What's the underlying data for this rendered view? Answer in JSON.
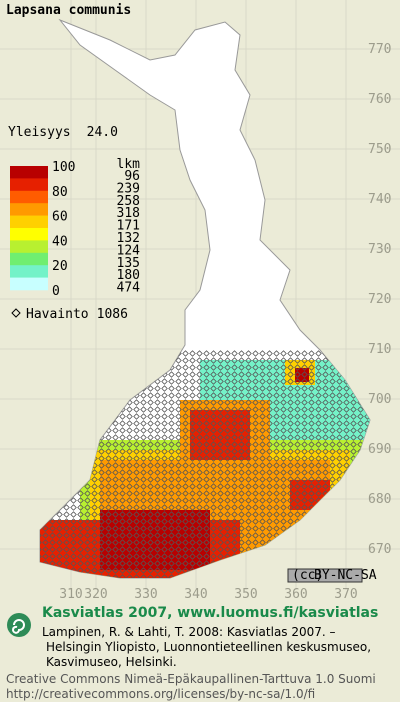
{
  "title": "Lapsana communis",
  "frequency": {
    "label": "Yleisyys",
    "value": "24.0"
  },
  "legend": {
    "scale_labels": [
      100,
      80,
      60,
      40,
      20,
      0
    ],
    "count_header": "lkm",
    "counts": [
      96,
      239,
      258,
      318,
      171,
      132,
      124,
      135,
      180,
      474
    ],
    "colors": [
      "#b80000",
      "#e62000",
      "#ff5c00",
      "#ff9a00",
      "#ffd000",
      "#ffff00",
      "#b8f030",
      "#70ee70",
      "#74f2c8",
      "#c8ffff"
    ]
  },
  "observations": {
    "label": "Havainto",
    "count": 1086
  },
  "grid": {
    "y_labels": [
      770,
      760,
      750,
      740,
      730,
      720,
      710,
      700,
      690,
      680,
      670
    ],
    "x_labels": [
      310,
      320,
      330,
      340,
      350,
      360,
      370
    ]
  },
  "badge": "BY-NC-SA",
  "footer": {
    "heading": "Kasviatlas 2007, www.luomus.fi/kasviatlas",
    "citation": [
      "Lampinen, R. & Lahti, T. 2008: Kasviatlas 2007. –",
      "Helsingin Yliopisto, Luonnontieteellinen keskusmuseo,",
      "Kasvimuseo, Helsinki."
    ],
    "license": [
      "Creative Commons Nimeä-Epäkaupallinen-Tarttuva 1.0 Suomi",
      "http://creativecommons.org/licenses/by-nc-sa/1.0/fi"
    ]
  }
}
